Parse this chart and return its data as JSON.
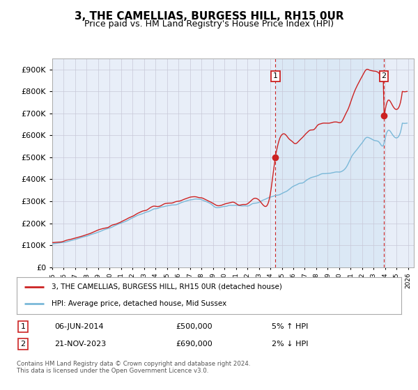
{
  "title": "3, THE CAMELLIAS, BURGESS HILL, RH15 0UR",
  "subtitle": "Price paid vs. HM Land Registry's House Price Index (HPI)",
  "legend_line1": "3, THE CAMELLIAS, BURGESS HILL, RH15 0UR (detached house)",
  "legend_line2": "HPI: Average price, detached house, Mid Sussex",
  "annotation1_label": "1",
  "annotation1_date": "06-JUN-2014",
  "annotation1_price": "£500,000",
  "annotation1_hpi": "5% ↑ HPI",
  "annotation2_label": "2",
  "annotation2_date": "21-NOV-2023",
  "annotation2_price": "£690,000",
  "annotation2_hpi": "2% ↓ HPI",
  "footnote": "Contains HM Land Registry data © Crown copyright and database right 2024.\nThis data is licensed under the Open Government Licence v3.0.",
  "hpi_color": "#7ab8d8",
  "price_color": "#cc2222",
  "dot_color": "#cc2222",
  "annotation_color": "#cc2222",
  "vline_color": "#cc2222",
  "grid_color": "#c8c8d8",
  "background_color": "#ffffff",
  "plot_bg_color": "#e8eef8",
  "shade_color": "#d0e4f4",
  "ylim": [
    0,
    950000
  ],
  "yticks": [
    0,
    100000,
    200000,
    300000,
    400000,
    500000,
    600000,
    700000,
    800000,
    900000
  ],
  "xlim_start": 1995.0,
  "xlim_end": 2026.5,
  "sale1_x": 2014.44,
  "sale1_y": 500000,
  "sale2_x": 2023.895,
  "sale2_y": 690000,
  "title_fontsize": 11,
  "subtitle_fontsize": 9
}
